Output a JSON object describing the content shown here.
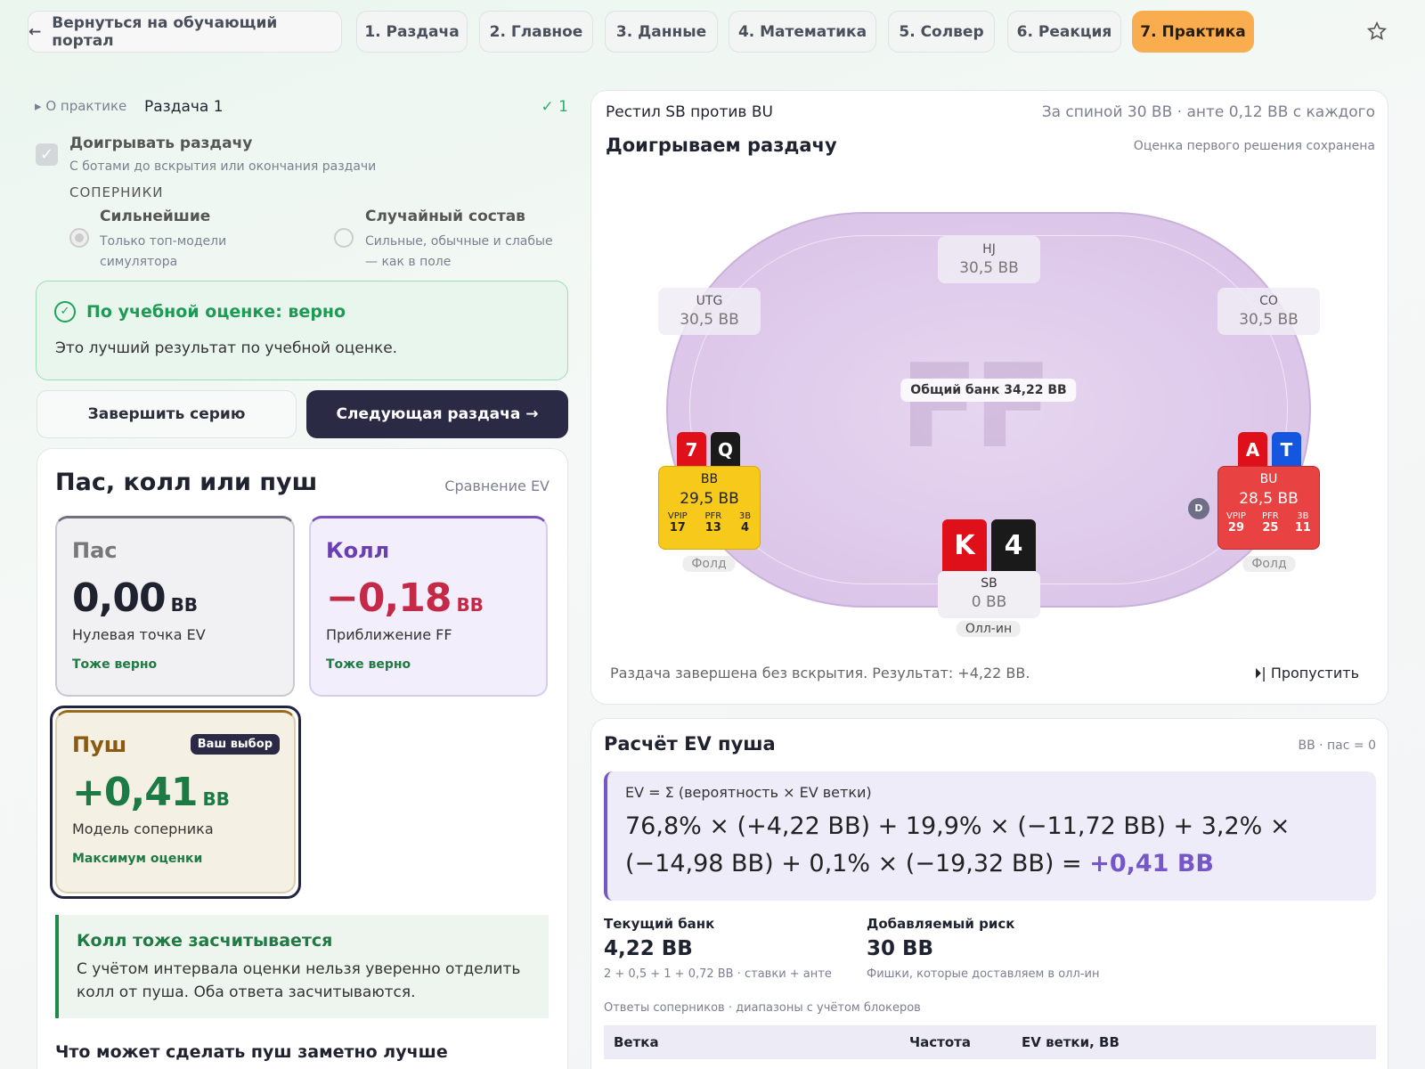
{
  "nav": {
    "back": "Вернуться на обучающий портал",
    "tabs": [
      "1. Раздача",
      "2. Главное",
      "3. Данные",
      "4. Математика",
      "5. Солвер",
      "6. Реакция",
      "7. Практика"
    ]
  },
  "left": {
    "about": "О практике",
    "hand": "Раздача 1",
    "count": "✓ 1",
    "playout": {
      "label": "Доигрывать раздачу",
      "hint": "С ботами до вскрытия или окончания раздачи"
    },
    "opponents": {
      "title": "СОПЕРНИКИ",
      "options": [
        {
          "label": "Сильнейшие",
          "hint": "Только топ-модели симулятора"
        },
        {
          "label": "Случайный состав",
          "hint": "Сильные, обычные и слабые — как в поле"
        }
      ]
    },
    "verdict": {
      "title": "По учебной оценке: верно",
      "text": "Это лучший результат по учебной оценке."
    },
    "buttons": [
      "Завершить серию",
      "Следующая раздача →"
    ],
    "decision": {
      "title": "Пас, колл или пуш",
      "subtitle": "Сравнение EV",
      "badge": "Ваш выбор",
      "options": [
        {
          "name": "Пас",
          "ev": "0,00",
          "unit": "BB",
          "desc": "Нулевая точка EV",
          "note": "Тоже верно"
        },
        {
          "name": "Колл",
          "ev": "−0,18",
          "unit": "BB",
          "desc": "Приближение FF",
          "note": "Тоже верно"
        },
        {
          "name": "Пуш",
          "ev": "+0,41",
          "unit": "BB",
          "desc": "Модель соперника",
          "note": "Максимум оценки"
        }
      ]
    },
    "callout": {
      "title": "Колл тоже засчитывается",
      "text": "С учётом интервала оценки нельзя уверенно отделить колл от пуша. Оба ответа засчитываются."
    },
    "next": "Что может сделать пуш заметно лучше"
  },
  "table": {
    "title": "Рестил SB против BU",
    "info": "За спиной 30 BB · анте 0,12 BB с каждого",
    "heading": "Доигрываем раздачу",
    "saved": "Оценка первого решения сохранена",
    "watermark": "FF",
    "pot": "Общий банк 34,22 BB",
    "dealer": "D",
    "seats": {
      "hj": {
        "pos": "HJ",
        "stack": "30,5 BB"
      },
      "utg": {
        "pos": "UTG",
        "stack": "30,5 BB"
      },
      "co": {
        "pos": "CO",
        "stack": "30,5 BB"
      },
      "bb": {
        "pos": "BB",
        "stack": "29,5 BB",
        "cards": [
          "7",
          "Q"
        ],
        "stats": [
          [
            "VPIP",
            "17"
          ],
          [
            "PFR",
            "13"
          ],
          [
            "3B",
            "4"
          ]
        ],
        "status": "Фолд"
      },
      "bu": {
        "pos": "BU",
        "stack": "28,5 BB",
        "cards": [
          "A",
          "T"
        ],
        "stats": [
          [
            "VPIP",
            "29"
          ],
          [
            "PFR",
            "25"
          ],
          [
            "3B",
            "11"
          ]
        ],
        "status": "Фолд"
      },
      "sb": {
        "pos": "SB",
        "stack": "0 BB",
        "cards": [
          "K",
          "4"
        ],
        "status": "Олл-ин"
      }
    },
    "footer": "Раздача завершена без вскрытия. Результат: +4,22 BB.",
    "skip": "Пропустить"
  },
  "ev": {
    "title": "Расчёт EV пуша",
    "units": "BB · пас = 0",
    "formula": "EV = Σ (вероятность × EV ветки)",
    "expression": "76,8% × (+4,22 BB) + 19,9% × (−11,72 BB) + 3,2% × (−14,98 BB) + 0,1% × (−19,32 BB) =",
    "result": "+0,41 BB",
    "stats": [
      {
        "label": "Текущий банк",
        "value": "4,22 BB",
        "note": "2 + 0,5 + 1 + 0,72 BB · ставки + анте"
      },
      {
        "label": "Добавляемый риск",
        "value": "30 BB",
        "note": "Фишки, которые доставляем в олл-ин"
      }
    ],
    "ranges": "Ответы соперников · диапазоны с учётом блокеров",
    "columns": [
      "Ветка",
      "Частота",
      "EV ветки, BB"
    ]
  }
}
